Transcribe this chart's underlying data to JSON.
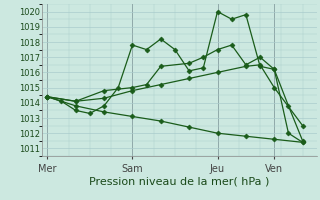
{
  "background_color": "#cce8e0",
  "grid_color": "#aacccc",
  "line_color": "#1a5c1a",
  "xlabel": "Pression niveau de la mer( hPa )",
  "ylim": [
    1010.5,
    1020.5
  ],
  "yticks": [
    1011,
    1012,
    1013,
    1014,
    1015,
    1016,
    1017,
    1018,
    1019,
    1020
  ],
  "xtick_labels": [
    "Mer",
    "Sam",
    "Jeu",
    "Ven"
  ],
  "xtick_positions": [
    0.0,
    3.0,
    6.0,
    8.0
  ],
  "xlim": [
    -0.2,
    9.5
  ],
  "vlines_x": [
    0.0,
    3.0,
    6.0,
    8.0
  ],
  "lines": [
    {
      "x": [
        0.0,
        0.5,
        1.0,
        1.5,
        2.0,
        2.5,
        3.0,
        3.5,
        4.0,
        4.5,
        5.0,
        5.5,
        6.0,
        6.5,
        7.0,
        7.5,
        8.0,
        8.5,
        9.0
      ],
      "y": [
        1014.4,
        1014.1,
        1013.5,
        1013.3,
        1013.8,
        1015.0,
        1017.8,
        1017.5,
        1018.2,
        1017.5,
        1016.1,
        1016.3,
        1020.0,
        1019.5,
        1019.8,
        1016.4,
        1016.2,
        1012.0,
        1011.4
      ]
    },
    {
      "x": [
        0.0,
        1.0,
        2.0,
        3.0,
        3.5,
        4.0,
        5.0,
        5.5,
        6.0,
        6.5,
        7.0,
        7.5,
        8.0,
        8.5,
        9.0
      ],
      "y": [
        1014.4,
        1014.1,
        1014.8,
        1015.0,
        1015.2,
        1016.4,
        1016.6,
        1017.0,
        1017.5,
        1017.8,
        1016.5,
        1017.0,
        1016.2,
        1013.8,
        1011.5
      ]
    },
    {
      "x": [
        0.0,
        1.0,
        2.0,
        3.0,
        4.0,
        5.0,
        6.0,
        7.0,
        7.5,
        8.0,
        9.0
      ],
      "y": [
        1014.4,
        1014.1,
        1014.3,
        1014.8,
        1015.2,
        1015.6,
        1016.0,
        1016.4,
        1016.5,
        1015.0,
        1012.5
      ]
    },
    {
      "x": [
        0.0,
        1.0,
        2.0,
        3.0,
        4.0,
        5.0,
        6.0,
        7.0,
        8.0,
        9.0
      ],
      "y": [
        1014.4,
        1013.8,
        1013.4,
        1013.1,
        1012.8,
        1012.4,
        1012.0,
        1011.8,
        1011.6,
        1011.4
      ]
    }
  ],
  "marker": "D",
  "markersize": 2.5,
  "linewidth": 0.9,
  "xlabel_fontsize": 8,
  "ytick_fontsize": 6,
  "xtick_fontsize": 7
}
